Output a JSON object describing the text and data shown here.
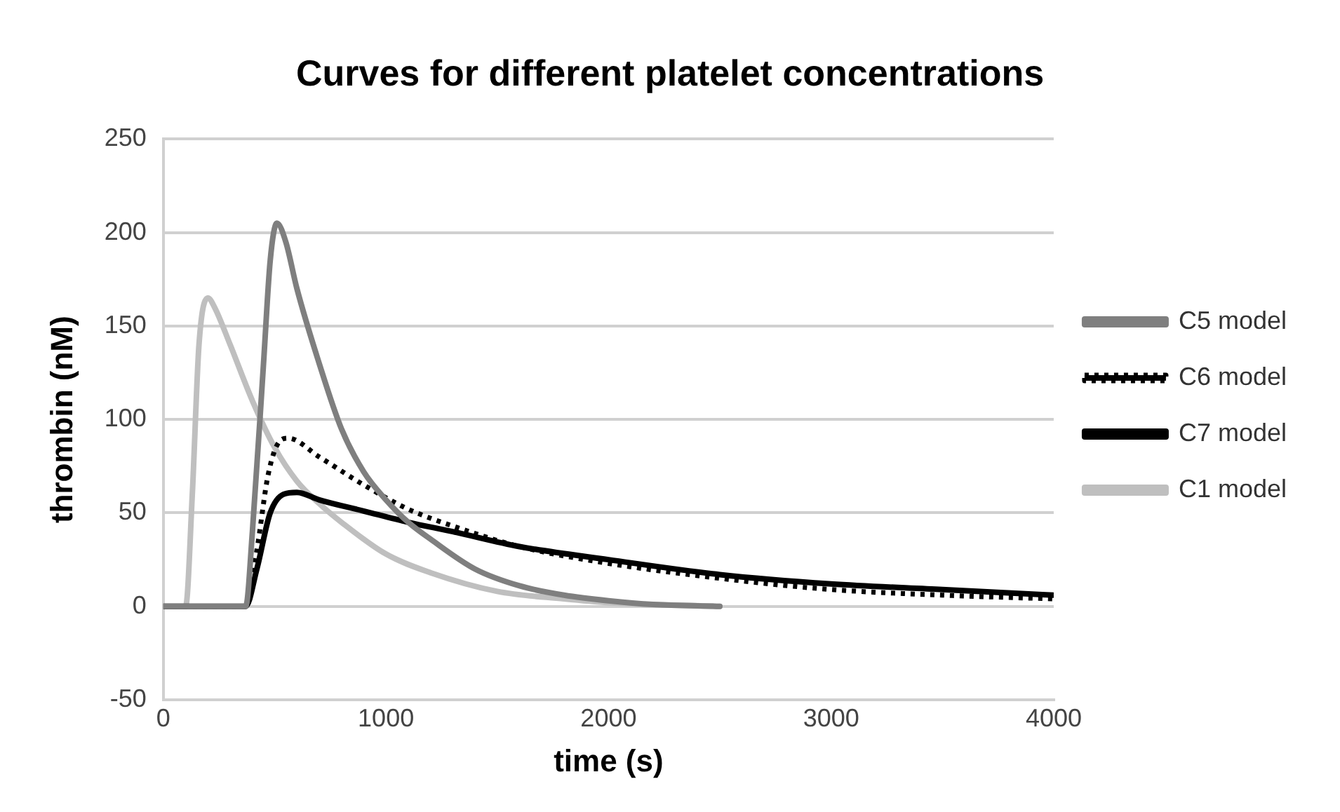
{
  "chart_data": {
    "type": "line",
    "title": "Curves for different platelet concentrations",
    "xlabel": "time (s)",
    "ylabel": "thrombin (nM)",
    "xlim": [
      0,
      4000
    ],
    "xticks": [
      0,
      1000,
      2000,
      3000,
      4000
    ],
    "ylim": [
      -50,
      250
    ],
    "yticks": [
      -50,
      0,
      50,
      100,
      150,
      200,
      250
    ],
    "grid": "y",
    "legend": "right",
    "marker": "none",
    "series": [
      {
        "name": "C5 model",
        "color": "#7f7f7f",
        "line_style": "solid",
        "x": [
          0,
          370,
          400,
          450,
          480,
          510,
          550,
          600,
          700,
          800,
          900,
          1000,
          1100,
          1200,
          1400,
          1600,
          1800,
          2000,
          2200,
          2500
        ],
        "values": [
          0,
          0,
          40,
          130,
          185,
          205,
          195,
          170,
          130,
          95,
          72,
          57,
          45,
          36,
          20,
          11,
          6,
          3,
          1,
          0
        ]
      },
      {
        "name": "C6 model",
        "color": "#000000",
        "line_style": "dotted",
        "x": [
          0,
          370,
          420,
          470,
          520,
          560,
          700,
          900,
          1100,
          1300,
          1600,
          2000,
          2500,
          3000,
          3500,
          4000
        ],
        "values": [
          0,
          0,
          30,
          70,
          88,
          90,
          80,
          65,
          52,
          43,
          32,
          23,
          15,
          9,
          6,
          4
        ]
      },
      {
        "name": "C7 model",
        "color": "#000000",
        "line_style": "solid",
        "x": [
          0,
          370,
          420,
          480,
          540,
          600,
          700,
          900,
          1100,
          1300,
          1600,
          2000,
          2500,
          3000,
          3500,
          4000
        ],
        "values": [
          0,
          0,
          20,
          50,
          60,
          61,
          57,
          51,
          45,
          40,
          32,
          25,
          17,
          12,
          9,
          6
        ]
      },
      {
        "name": "C1 model",
        "color": "#bfbfbf",
        "line_style": "solid",
        "x": [
          0,
          100,
          130,
          160,
          200,
          230,
          300,
          400,
          500,
          600,
          700,
          800,
          1000,
          1200,
          1500,
          1800,
          2000,
          2500
        ],
        "values": [
          0,
          0,
          60,
          140,
          165,
          160,
          140,
          110,
          85,
          67,
          55,
          45,
          28,
          18,
          8,
          4,
          2,
          0
        ]
      }
    ]
  }
}
